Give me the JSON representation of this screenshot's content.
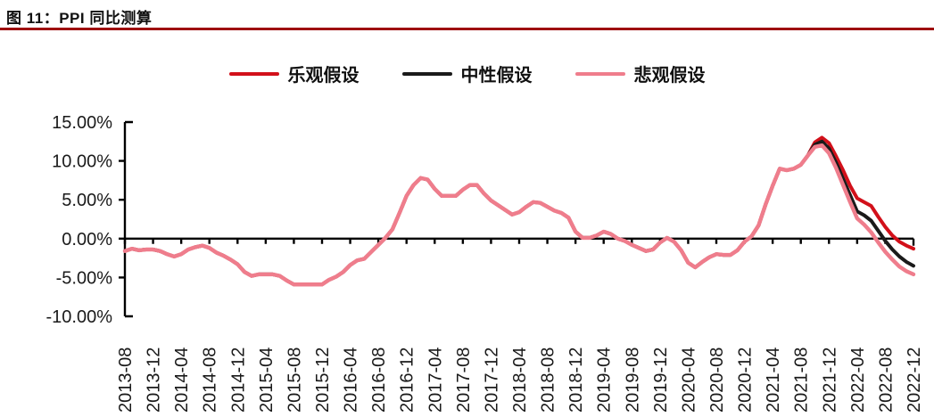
{
  "theme": {
    "title_underline_color": "#9e0b0f",
    "axis_color": "#000000",
    "tick_label_color": "#1a1a1a"
  },
  "chart_data": {
    "type": "line",
    "title": "图 11：PPI 同比测算",
    "xlabel": "",
    "ylabel": "",
    "ylim": [
      -10,
      15
    ],
    "legend_position": "top",
    "grid": false,
    "y_ticks": [
      {
        "value": 15,
        "label": "15.00%"
      },
      {
        "value": 10,
        "label": "10.00%"
      },
      {
        "value": 5,
        "label": "5.00%"
      },
      {
        "value": 0,
        "label": "0.00%"
      },
      {
        "value": -5,
        "label": "-5.00%"
      },
      {
        "value": -10,
        "label": "-10.00%"
      }
    ],
    "x_monthly_start": "2013-08",
    "x_monthly_end": "2022-12",
    "x_tick_labels": [
      "2013-08",
      "2013-12",
      "2014-04",
      "2014-08",
      "2014-12",
      "2015-04",
      "2015-08",
      "2015-12",
      "2016-04",
      "2016-08",
      "2016-12",
      "2017-04",
      "2017-08",
      "2017-12",
      "2018-04",
      "2018-08",
      "2018-12",
      "2019-04",
      "2019-08",
      "2019-12",
      "2020-04",
      "2020-08",
      "2020-12",
      "2021-04",
      "2021-08",
      "2021-12",
      "2022-04",
      "2022-08",
      "2022-12"
    ],
    "shared_history_2013_08_to_2021_09": [
      -1.6,
      -1.3,
      -1.5,
      -1.4,
      -1.4,
      -1.6,
      -2.0,
      -2.3,
      -2.0,
      -1.4,
      -1.1,
      -0.9,
      -1.2,
      -1.8,
      -2.2,
      -2.7,
      -3.3,
      -4.3,
      -4.8,
      -4.6,
      -4.6,
      -4.6,
      -4.8,
      -5.4,
      -5.9,
      -5.9,
      -5.9,
      -5.9,
      -5.9,
      -5.3,
      -4.9,
      -4.3,
      -3.4,
      -2.8,
      -2.6,
      -1.7,
      -0.8,
      0.1,
      1.2,
      3.3,
      5.5,
      6.9,
      7.8,
      7.6,
      6.4,
      5.5,
      5.5,
      5.5,
      6.3,
      6.9,
      6.9,
      5.8,
      4.9,
      4.3,
      3.7,
      3.1,
      3.4,
      4.1,
      4.7,
      4.6,
      4.1,
      3.6,
      3.3,
      2.7,
      0.9,
      0.1,
      0.1,
      0.4,
      0.9,
      0.6,
      0.0,
      -0.3,
      -0.8,
      -1.2,
      -1.6,
      -1.4,
      -0.5,
      0.1,
      -0.4,
      -1.5,
      -3.1,
      -3.7,
      -3.0,
      -2.4,
      -2.0,
      -2.1,
      -2.1,
      -1.5,
      -0.4,
      0.3,
      1.7,
      4.4,
      6.8,
      9.0,
      8.8,
      9.0,
      9.5,
      10.7
    ],
    "forecast_start": "2021-10",
    "series": [
      {
        "name": "乐观假设",
        "color": "#d2101a",
        "stroke_width": 4,
        "forecast": [
          12.4,
          13.0,
          12.3,
          10.6,
          8.8,
          6.8,
          5.2,
          4.7,
          4.2,
          2.8,
          1.5,
          0.4,
          -0.4,
          -0.9,
          -1.3
        ]
      },
      {
        "name": "中性假设",
        "color": "#1a1a1a",
        "stroke_width": 4,
        "forecast": [
          12.1,
          12.5,
          11.6,
          9.8,
          7.7,
          5.6,
          3.5,
          3.0,
          2.3,
          1.0,
          -0.3,
          -1.4,
          -2.3,
          -3.0,
          -3.5
        ]
      },
      {
        "name": "悲观假设",
        "color": "#ef7d8c",
        "stroke_width": 4.4,
        "forecast": [
          11.8,
          12.0,
          11.0,
          9.1,
          6.9,
          4.7,
          2.6,
          1.8,
          0.8,
          -0.5,
          -1.7,
          -2.7,
          -3.6,
          -4.2,
          -4.6
        ]
      }
    ]
  }
}
